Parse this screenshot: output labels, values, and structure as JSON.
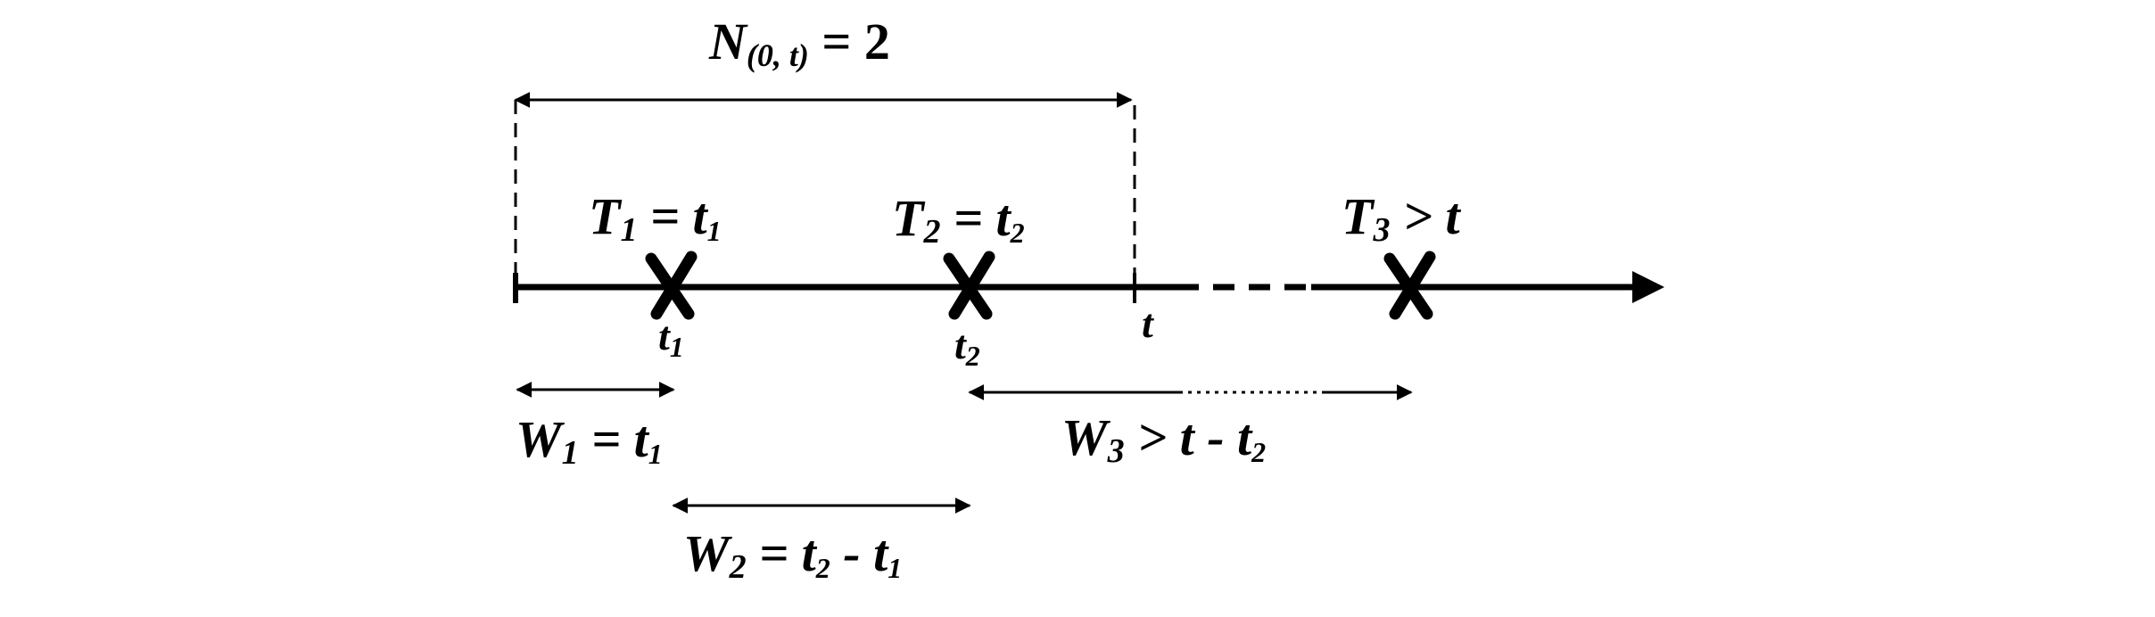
{
  "count_label": {
    "main": "N",
    "sub": "(0, t)",
    "rest": " = 2"
  },
  "events": [
    {
      "label_main": "T",
      "label_sub": "1",
      "label_rest": " = t",
      "label_rest_sub": "1",
      "tick_main": "t",
      "tick_sub": "1"
    },
    {
      "label_main": "T",
      "label_sub": "2",
      "label_rest": " = t",
      "label_rest_sub": "2",
      "tick_main": "t",
      "tick_sub": "2"
    },
    {
      "label_main": "T",
      "label_sub": "3",
      "label_rest": " > t",
      "label_rest_sub": ""
    }
  ],
  "time_mark": "t",
  "waits": [
    {
      "main": "W",
      "sub": "1",
      "rest": " = t",
      "rest_sub": "1",
      "rest2": "",
      "rest2_sub": ""
    },
    {
      "main": "W",
      "sub": "2",
      "rest": " = t",
      "rest_sub": "2",
      "rest2": " - t",
      "rest2_sub": "1"
    },
    {
      "main": "W",
      "sub": "3",
      "rest": " > t - t",
      "rest_sub": "2",
      "rest2": "",
      "rest2_sub": ""
    }
  ]
}
